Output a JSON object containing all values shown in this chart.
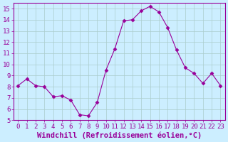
{
  "x": [
    0,
    1,
    2,
    3,
    4,
    5,
    6,
    7,
    8,
    9,
    10,
    11,
    12,
    13,
    14,
    15,
    16,
    17,
    18,
    19,
    20,
    21,
    22,
    23
  ],
  "y": [
    8.1,
    8.7,
    8.1,
    8.0,
    7.1,
    7.2,
    6.8,
    5.5,
    5.4,
    6.6,
    9.5,
    11.4,
    13.9,
    14.0,
    14.8,
    15.2,
    14.7,
    13.3,
    11.3,
    9.7,
    9.2,
    8.3,
    9.2,
    8.1
  ],
  "line_color": "#990099",
  "marker": "D",
  "marker_size": 2.5,
  "bg_color": "#cceeff",
  "grid_color": "#aacccc",
  "xlabel": "Windchill (Refroidissement éolien,°C)",
  "xlim": [
    -0.5,
    23.5
  ],
  "ylim": [
    5,
    15.5
  ],
  "yticks": [
    5,
    6,
    7,
    8,
    9,
    10,
    11,
    12,
    13,
    14,
    15
  ],
  "xticks": [
    0,
    1,
    2,
    3,
    4,
    5,
    6,
    7,
    8,
    9,
    10,
    11,
    12,
    13,
    14,
    15,
    16,
    17,
    18,
    19,
    20,
    21,
    22,
    23
  ],
  "tick_color": "#990099",
  "label_color": "#990099",
  "axis_color": "#990099",
  "font_size": 6.5,
  "xlabel_font_size": 7.5
}
